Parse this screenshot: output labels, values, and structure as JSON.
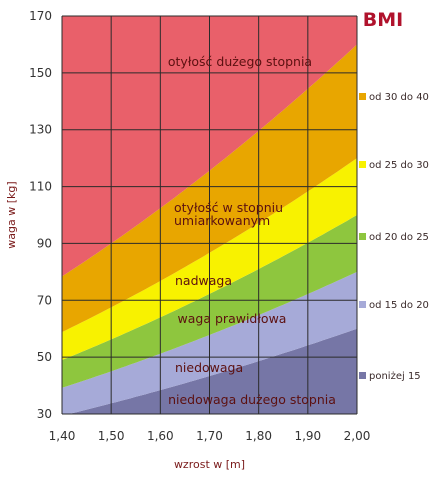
{
  "chart_data": {
    "type": "area",
    "xlabel": "wzrost w [m]",
    "ylabel": "waga w [kg]",
    "xlim": [
      1.4,
      2.0
    ],
    "ylim": [
      30,
      170
    ],
    "x_ticks": [
      "1,40",
      "1,50",
      "1,60",
      "1,70",
      "1,80",
      "1,90",
      "2,00"
    ],
    "y_ticks": [
      "30",
      "50",
      "70",
      "90",
      "110",
      "130",
      "150",
      "170"
    ],
    "grid": true,
    "bmi_boundaries": [
      15,
      20,
      25,
      30,
      40
    ],
    "zones": [
      {
        "bmi_range": [
          0,
          15
        ],
        "color": "#7676a6",
        "label": "niedowaga dużego stopnia"
      },
      {
        "bmi_range": [
          15,
          20
        ],
        "color": "#a6aad8",
        "label": "niedowaga"
      },
      {
        "bmi_range": [
          20,
          25
        ],
        "color": "#8ec63e",
        "label": "waga prawidłowa"
      },
      {
        "bmi_range": [
          25,
          30
        ],
        "color": "#f8f200",
        "label": "nadwaga"
      },
      {
        "bmi_range": [
          30,
          40
        ],
        "color": "#e8a600",
        "label": "otyłość w stopniu umiarkowanym"
      },
      {
        "bmi_range": [
          40,
          100
        ],
        "color": "#e9606a",
        "label": "otyłość dużego stopnia"
      }
    ],
    "legend": {
      "title": "BMI",
      "position": "right",
      "items": [
        {
          "label": "od 30 do 40",
          "color": "#e8a600"
        },
        {
          "label": "od 25 do 30",
          "color": "#f8f200"
        },
        {
          "label": "od 20 do 25",
          "color": "#8ec63e"
        },
        {
          "label": "od 15 do 20",
          "color": "#a6aad8"
        },
        {
          "label": "poniżej 15",
          "color": "#7676a6"
        }
      ]
    }
  }
}
